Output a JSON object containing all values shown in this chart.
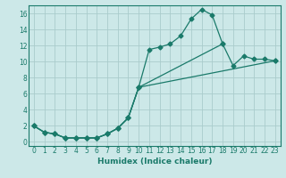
{
  "xlabel": "Humidex (Indice chaleur)",
  "bg_color": "#cce8e8",
  "line_color": "#1a7a6a",
  "grid_color": "#aacccc",
  "xlim": [
    -0.5,
    23.5
  ],
  "ylim": [
    -0.5,
    17.0
  ],
  "xticks": [
    0,
    1,
    2,
    3,
    4,
    5,
    6,
    7,
    8,
    9,
    10,
    11,
    12,
    13,
    14,
    15,
    16,
    17,
    18,
    19,
    20,
    21,
    22,
    23
  ],
  "yticks": [
    0,
    2,
    4,
    6,
    8,
    10,
    12,
    14,
    16
  ],
  "line1_x": [
    0,
    1,
    2,
    3,
    4,
    5,
    6,
    7,
    8,
    9,
    10,
    11,
    12,
    13,
    14,
    15,
    16,
    17,
    18
  ],
  "line1_y": [
    2,
    1.2,
    1.0,
    0.5,
    0.5,
    0.5,
    0.5,
    1.0,
    1.7,
    3.0,
    6.8,
    11.5,
    11.8,
    12.2,
    13.2,
    15.3,
    16.5,
    15.8,
    12.2
  ],
  "line2_x": [
    0,
    1,
    2,
    3,
    4,
    5,
    6,
    7,
    8,
    9,
    10,
    18,
    19,
    20,
    21,
    22,
    23
  ],
  "line2_y": [
    2,
    1.2,
    1.0,
    0.5,
    0.5,
    0.5,
    0.5,
    1.0,
    1.7,
    3.0,
    6.8,
    12.2,
    9.5,
    10.7,
    10.3,
    10.3,
    10.1
  ],
  "line3_x": [
    0,
    1,
    2,
    3,
    4,
    5,
    6,
    7,
    8,
    9,
    10,
    23
  ],
  "line3_y": [
    2,
    1.2,
    1.0,
    0.5,
    0.5,
    0.5,
    0.5,
    1.0,
    1.7,
    3.0,
    6.8,
    10.1
  ]
}
